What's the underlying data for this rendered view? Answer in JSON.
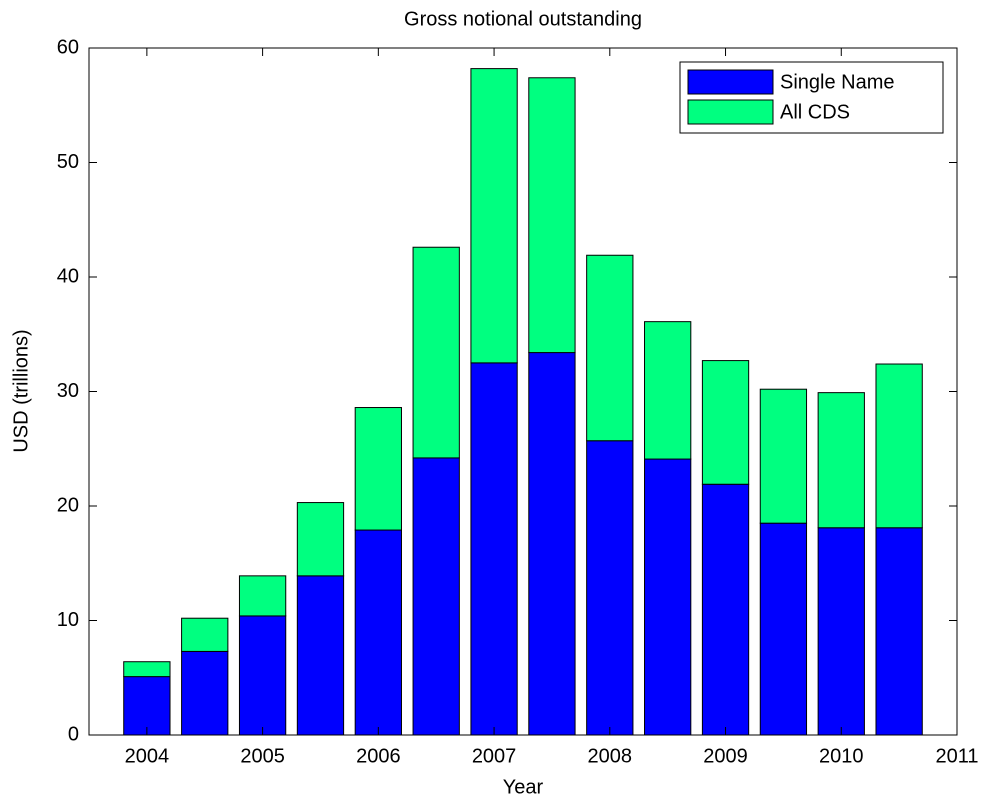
{
  "chart_data": {
    "type": "stacked_bar",
    "title": "Gross notional outstanding",
    "x_label": "Year",
    "y_label": "USD (trillions)",
    "x": [
      2004,
      2004.5,
      2005,
      2005.5,
      2006,
      2006.5,
      2007,
      2007.5,
      2008,
      2008.5,
      2009,
      2009.5,
      2010,
      2010.5
    ],
    "series": [
      {
        "name": "Single Name",
        "color": "#0000ff",
        "values": [
          5.1,
          7.3,
          10.4,
          13.9,
          17.9,
          24.2,
          32.5,
          33.4,
          25.7,
          24.1,
          21.9,
          18.5,
          18.1,
          18.1
        ]
      },
      {
        "name": "All CDS",
        "color": "#00ff80",
        "values": [
          1.3,
          2.9,
          3.5,
          6.4,
          10.7,
          18.4,
          25.7,
          24.0,
          16.2,
          12.0,
          10.8,
          11.7,
          11.8,
          14.3
        ]
      }
    ],
    "xlim": [
      2003.5,
      2011
    ],
    "xticks": [
      2004,
      2005,
      2006,
      2007,
      2008,
      2009,
      2010,
      2011
    ],
    "ylim": [
      0,
      60
    ],
    "yticks": [
      0,
      10,
      20,
      30,
      40,
      50,
      60
    ],
    "legend": "top-right"
  }
}
